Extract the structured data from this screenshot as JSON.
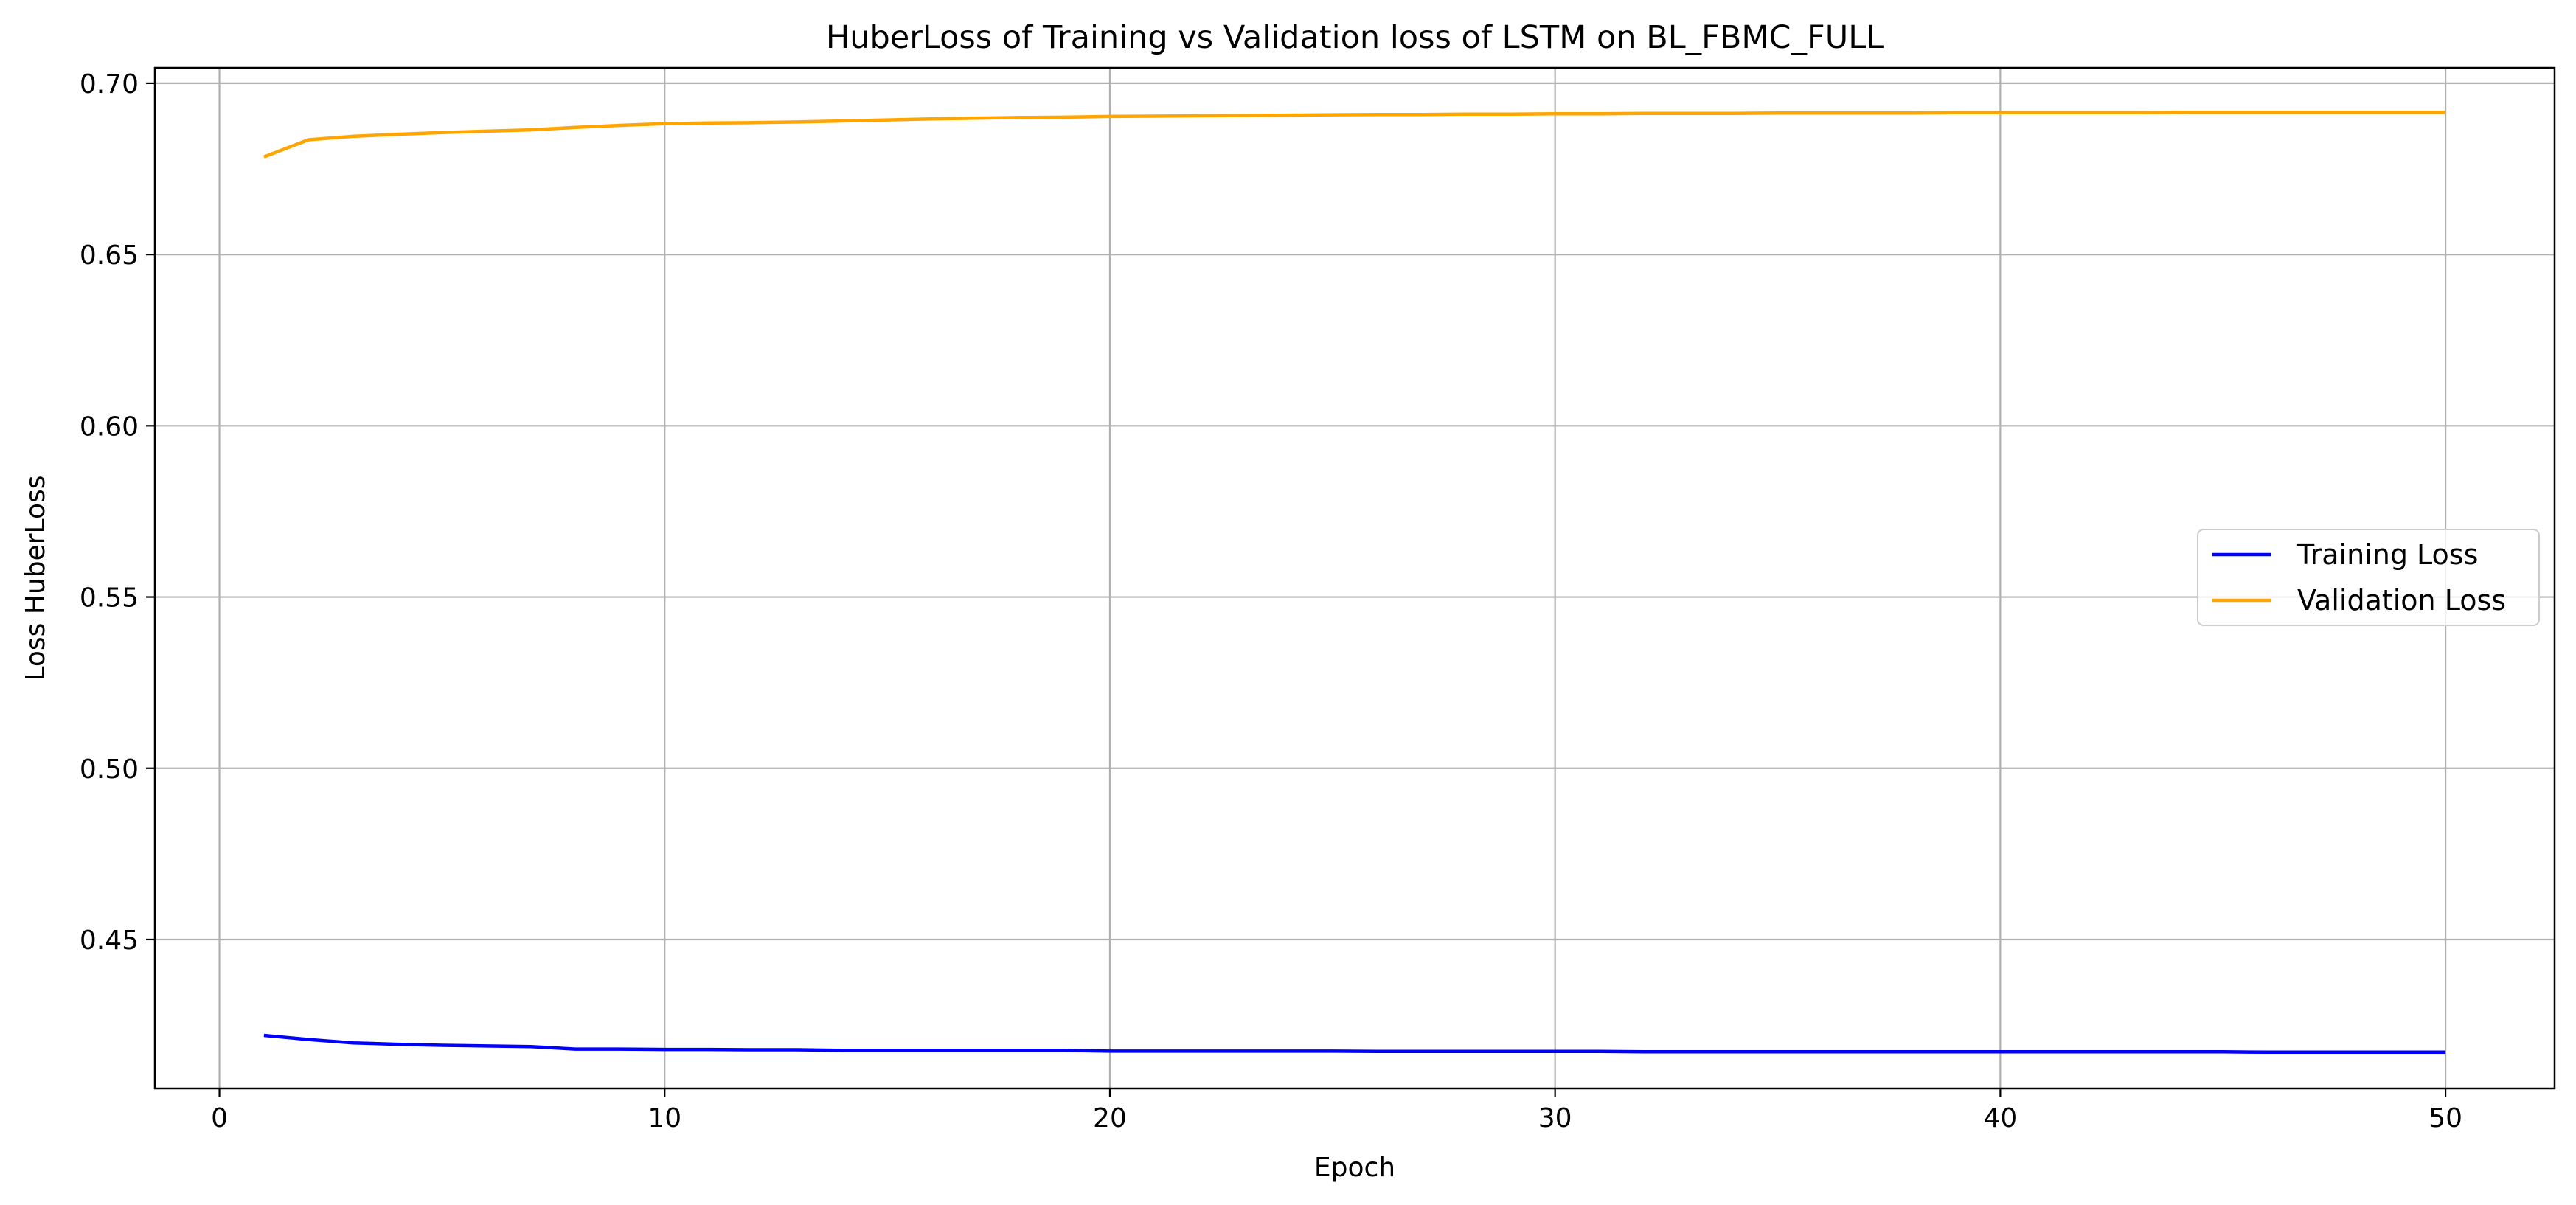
{
  "chart_data": {
    "type": "line",
    "title": "HuberLoss of Training vs Validation loss of LSTM on BL_FBMC_FULL",
    "xlabel": "Epoch",
    "ylabel": "Loss HuberLoss",
    "xlim": [
      -1.45,
      52.45
    ],
    "ylim": [
      0.4065,
      0.7045
    ],
    "xticks": [
      0,
      10,
      20,
      30,
      40,
      50
    ],
    "yticks": [
      0.45,
      0.5,
      0.55,
      0.6,
      0.65,
      0.7
    ],
    "xtick_labels": [
      "0",
      "10",
      "20",
      "30",
      "40",
      "50"
    ],
    "ytick_labels": [
      "0.45",
      "0.50",
      "0.55",
      "0.60",
      "0.65",
      "0.70"
    ],
    "grid": true,
    "legend_position": "center-right",
    "x": [
      1,
      2,
      3,
      4,
      5,
      6,
      7,
      8,
      9,
      10,
      11,
      12,
      13,
      14,
      15,
      16,
      17,
      18,
      19,
      20,
      21,
      22,
      23,
      24,
      25,
      26,
      27,
      28,
      29,
      30,
      31,
      32,
      33,
      34,
      35,
      36,
      37,
      38,
      39,
      40,
      41,
      42,
      43,
      44,
      45,
      46,
      47,
      48,
      49,
      50
    ],
    "series": [
      {
        "name": "Training Loss",
        "color": "#0000ff",
        "values": [
          0.422,
          0.4208,
          0.4198,
          0.4194,
          0.4191,
          0.4189,
          0.4187,
          0.418,
          0.418,
          0.4179,
          0.4179,
          0.4178,
          0.4178,
          0.4176,
          0.4176,
          0.4176,
          0.4176,
          0.4176,
          0.4176,
          0.4174,
          0.4174,
          0.4174,
          0.4174,
          0.4174,
          0.4174,
          0.4173,
          0.4173,
          0.4173,
          0.4173,
          0.4173,
          0.4173,
          0.4172,
          0.4172,
          0.4172,
          0.4172,
          0.4172,
          0.4172,
          0.4172,
          0.4172,
          0.4172,
          0.4172,
          0.4172,
          0.4172,
          0.4172,
          0.4172,
          0.4171,
          0.4171,
          0.4171,
          0.4171,
          0.4171
        ]
      },
      {
        "name": "Validation Loss",
        "color": "#ffa500",
        "values": [
          0.6785,
          0.6835,
          0.6845,
          0.6851,
          0.6856,
          0.686,
          0.6864,
          0.6871,
          0.6877,
          0.6882,
          0.6884,
          0.6885,
          0.6887,
          0.689,
          0.6893,
          0.6896,
          0.6898,
          0.69,
          0.6901,
          0.6903,
          0.6904,
          0.6905,
          0.6906,
          0.6907,
          0.6908,
          0.6909,
          0.6909,
          0.691,
          0.691,
          0.6911,
          0.6911,
          0.6912,
          0.6912,
          0.6912,
          0.6913,
          0.6913,
          0.6913,
          0.6913,
          0.6914,
          0.6914,
          0.6914,
          0.6914,
          0.6914,
          0.6915,
          0.6915,
          0.6915,
          0.6915,
          0.6915,
          0.6915,
          0.6915
        ]
      }
    ]
  }
}
